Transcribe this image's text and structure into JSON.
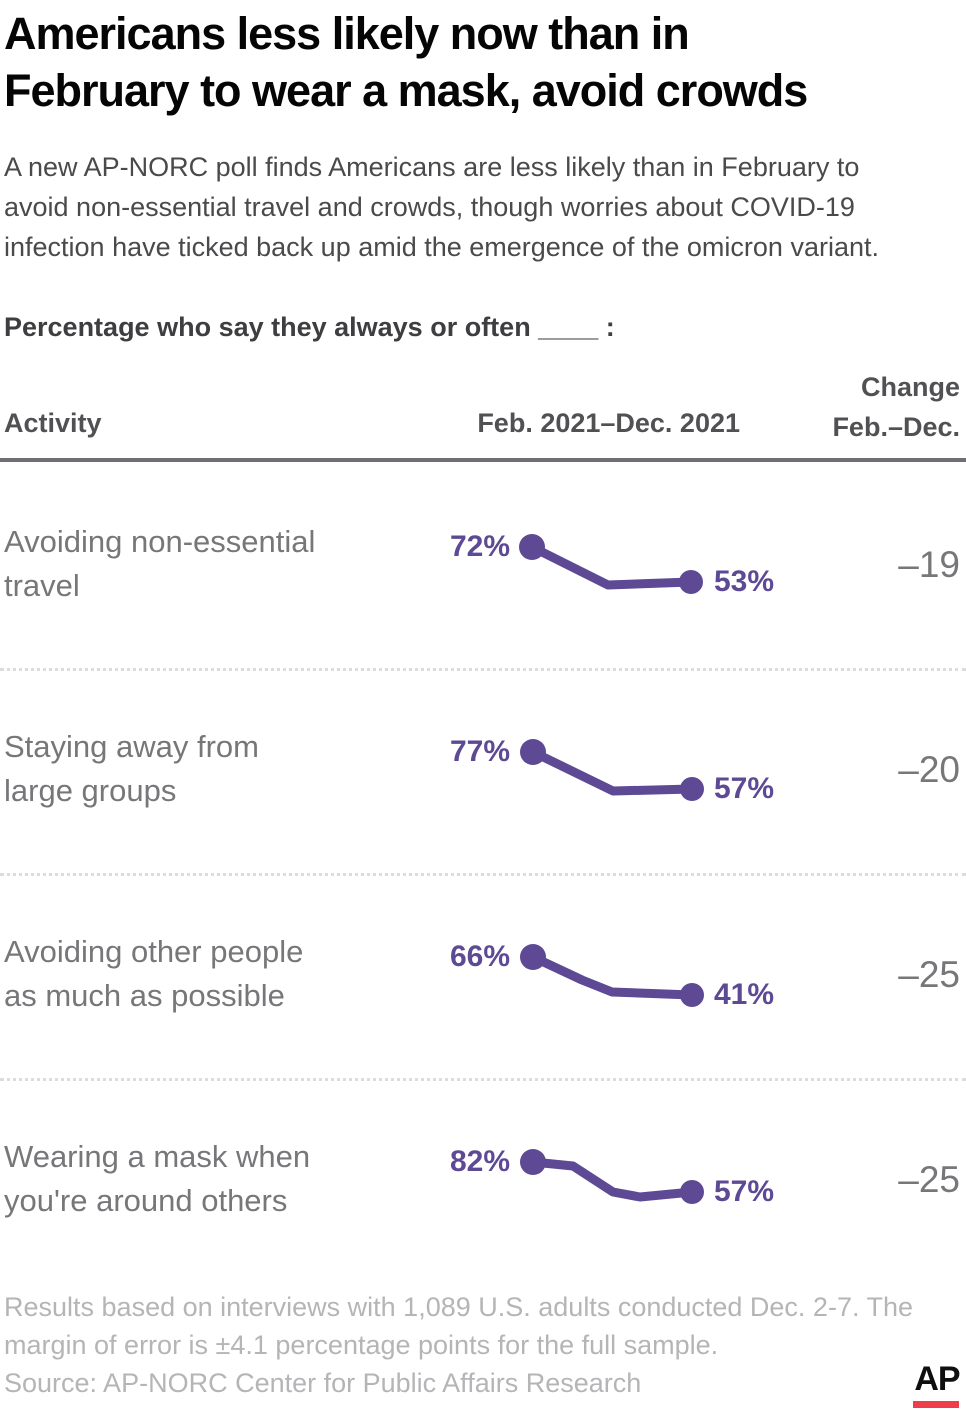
{
  "header": {
    "title": "Americans less likely now than in\nFebruary to wear a mask, avoid crowds",
    "subtitle": "A new AP-NORC poll finds Americans are less likely than in February to\navoid non-essential travel and crowds, though worries about COVID-19\ninfection have ticked back up amid the emergence of the omicron variant.",
    "lead_in": "Percentage who say they always or often ____ :"
  },
  "table": {
    "columns": {
      "activity": "Activity",
      "trend": "Feb. 2021–Dec. 2021",
      "change": "Change\nFeb.–Dec."
    }
  },
  "chart_data": {
    "type": "line",
    "title": "Percentage who say they always or often ____ :",
    "period": "Feb. 2021–Dec. 2021",
    "x": [
      "Feb. 2021",
      "Dec. 2021"
    ],
    "legend": "none",
    "grid": false,
    "rows": [
      {
        "activity": "Avoiding non-essential\ntravel",
        "start_value": 72,
        "end_value": 53,
        "start_label": "72%",
        "end_label": "53%",
        "change": -19,
        "change_label": "–19",
        "spark_points": [
          [
            14,
            20
          ],
          [
            90,
            58
          ],
          [
            173,
            55
          ]
        ]
      },
      {
        "activity": "Staying away from\nlarge groups",
        "start_value": 77,
        "end_value": 57,
        "start_label": "77%",
        "end_label": "57%",
        "change": -20,
        "change_label": "–20",
        "spark_points": [
          [
            15,
            20
          ],
          [
            95,
            59
          ],
          [
            174,
            57
          ]
        ]
      },
      {
        "activity": "Avoiding other people\nas much as possible",
        "start_value": 66,
        "end_value": 41,
        "start_label": "66%",
        "end_label": "41%",
        "change": -25,
        "change_label": "–25",
        "spark_points": [
          [
            15,
            20
          ],
          [
            64,
            43
          ],
          [
            94,
            55
          ],
          [
            174,
            58
          ]
        ]
      },
      {
        "activity": "Wearing a mask when\nyou're around others",
        "start_value": 82,
        "end_value": 57,
        "start_label": "82%",
        "end_label": "57%",
        "change": -25,
        "change_label": "–25",
        "spark_points": [
          [
            15,
            20
          ],
          [
            55,
            24
          ],
          [
            95,
            50
          ],
          [
            122,
            55
          ],
          [
            174,
            50
          ]
        ]
      }
    ]
  },
  "footer": {
    "note": "Results based on interviews with 1,089 U.S. adults conducted Dec. 2-7. The\nmargin of error is ±4.1 percentage points for the full sample.",
    "source": "Source: AP-NORC Center for Public Affairs Research",
    "logo_text": "AP"
  },
  "colors": {
    "accent_purple": "#5d4994",
    "ap_red": "#ee3d4c",
    "rule_gray": "#6e6e73",
    "label_gray": "#77777a",
    "note_gray": "#b5b5b7"
  }
}
